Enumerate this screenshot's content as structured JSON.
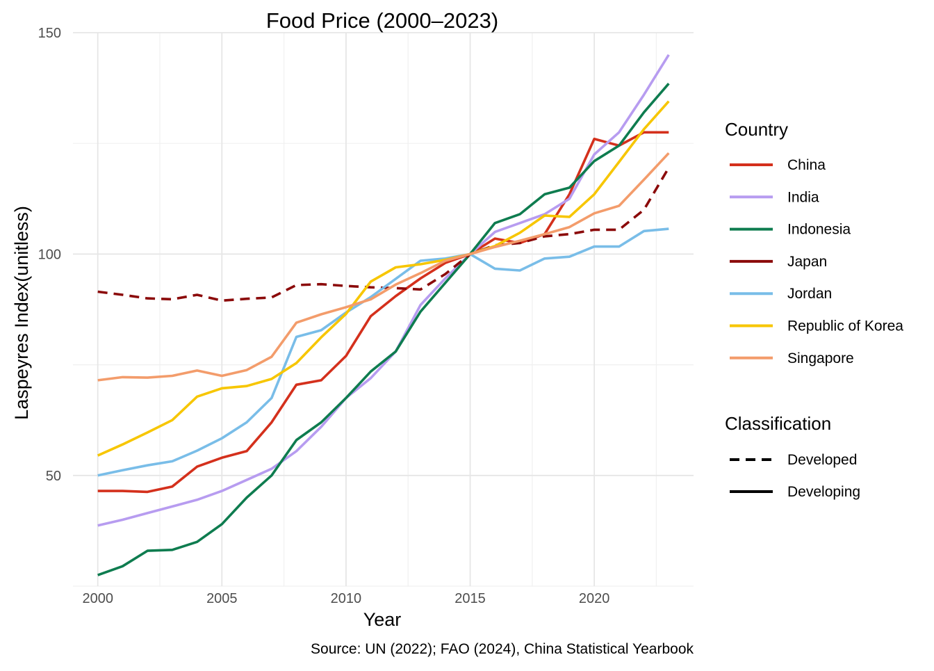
{
  "chart_data": {
    "type": "line",
    "title": "Food Price (2000–2023)",
    "xlabel": "Year",
    "ylabel": "Laspeyres Index(unitless)",
    "caption": "Source: UN (2022); FAO (2024), China Statistical Yearbook",
    "xlim": [
      1999,
      2024
    ],
    "ylim": [
      25,
      150
    ],
    "x_ticks": [
      2000,
      2005,
      2010,
      2015,
      2020
    ],
    "y_ticks": [
      50,
      100,
      150
    ],
    "grid": true,
    "legend_position": "right",
    "legend": {
      "country_title": "Country",
      "classification_title": "Classification",
      "classification_items": [
        {
          "label": "Developed",
          "dash": "dashed"
        },
        {
          "label": "Developing",
          "dash": "solid"
        }
      ]
    },
    "x": [
      2000,
      2001,
      2002,
      2003,
      2004,
      2005,
      2006,
      2007,
      2008,
      2009,
      2010,
      2011,
      2012,
      2013,
      2014,
      2015,
      2016,
      2017,
      2018,
      2019,
      2020,
      2021,
      2022,
      2023
    ],
    "series": [
      {
        "name": "China",
        "color": "#d4301c",
        "classification": "Developing",
        "values": [
          46.5,
          46.5,
          46.3,
          47.5,
          52,
          54,
          55.5,
          62,
          70.5,
          71.5,
          77,
          86,
          90.5,
          94.5,
          98,
          100,
          103.5,
          102.5,
          104.5,
          113.5,
          126,
          124.5,
          127.5,
          127.5
        ]
      },
      {
        "name": "India",
        "color": "#b79cf0",
        "classification": "Developing",
        "values": [
          38.7,
          40,
          41.5,
          43,
          44.5,
          46.5,
          49,
          51.5,
          55.5,
          61,
          67.5,
          72,
          78,
          88.5,
          94.5,
          100,
          105,
          107,
          109,
          112.5,
          122.5,
          127.5,
          136,
          145
        ]
      },
      {
        "name": "Indonesia",
        "color": "#0e7c4f",
        "classification": "Developing",
        "values": [
          27.5,
          29.5,
          33,
          33.2,
          35,
          39,
          45,
          50,
          58,
          62,
          67.5,
          73.5,
          78,
          87,
          93.5,
          100,
          107,
          109,
          113.5,
          115,
          121,
          124.5,
          132,
          138.5
        ]
      },
      {
        "name": "Japan",
        "color": "#8b0a0a",
        "classification": "Developed",
        "values": [
          91.5,
          90.8,
          90,
          89.8,
          90.8,
          89.5,
          89.9,
          90.2,
          93,
          93.2,
          92.8,
          92.5,
          92.3,
          92,
          95.5,
          100,
          102,
          102.5,
          104,
          104.5,
          105.5,
          105.5,
          110,
          119.5
        ]
      },
      {
        "name": "Jordan",
        "color": "#79bde8",
        "classification": "Developing",
        "values": [
          50,
          51.2,
          52.3,
          53.2,
          55.6,
          58.4,
          62,
          67.5,
          81.3,
          82.8,
          86.8,
          90.3,
          94.4,
          98.5,
          99,
          100,
          96.7,
          96.3,
          99,
          99.4,
          101.7,
          101.7,
          105.2,
          105.7
        ]
      },
      {
        "name": "Republic of Korea",
        "color": "#f7c600",
        "classification": "Developing",
        "values": [
          54.5,
          57,
          59.7,
          62.5,
          67.8,
          69.7,
          70.2,
          71.8,
          75.4,
          81.2,
          86.5,
          93.8,
          97,
          97.7,
          98.7,
          100,
          101.8,
          104.8,
          108.7,
          108.4,
          113.5,
          120.8,
          128.2,
          134.5
        ]
      },
      {
        "name": "Singapore",
        "color": "#f39c6b",
        "classification": "Developing",
        "values": [
          71.5,
          72.2,
          72.1,
          72.5,
          73.7,
          72.5,
          73.8,
          76.8,
          84.5,
          86.4,
          88,
          89.8,
          93.1,
          95.7,
          98.5,
          100,
          101.6,
          103,
          104.5,
          106.1,
          109.2,
          110.9,
          116.8,
          122.8
        ]
      }
    ]
  }
}
